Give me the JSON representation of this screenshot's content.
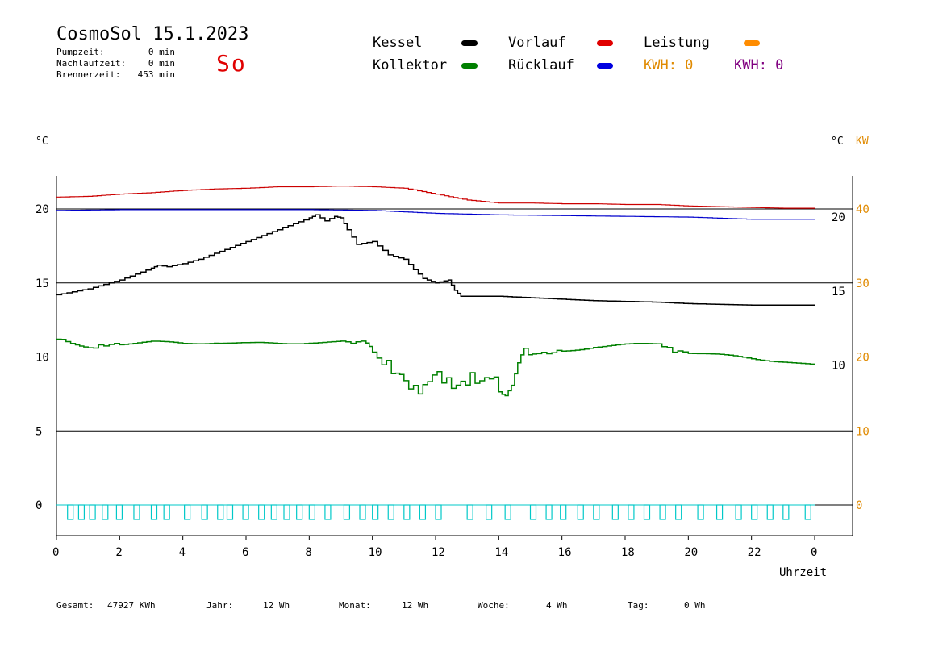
{
  "header": {
    "title": "CosmoSol 15.1.2023",
    "day": "So",
    "stats": [
      {
        "label": "Pumpzeit:",
        "value": "0 min"
      },
      {
        "label": "Nachlaufzeit:",
        "value": "0 min"
      },
      {
        "label": "Brennerzeit:",
        "value": "453 min"
      }
    ]
  },
  "legend": {
    "items": [
      {
        "label": "Kessel",
        "color": "#000000"
      },
      {
        "label": "Kollektor",
        "color": "#008000"
      },
      {
        "label": "Vorlauf",
        "color": "#e00000"
      },
      {
        "label": "Rücklauf",
        "color": "#0000e0"
      },
      {
        "label": "Leistung",
        "color": "#ff8c00"
      }
    ],
    "kwh_orange": "KWH: 0",
    "kwh_purple": "KWH: 0",
    "kwh_orange_color": "#e08a00",
    "kwh_purple_color": "#800080"
  },
  "axes": {
    "left_unit": "°C",
    "right_unit": "°C",
    "right_unit2": "KW",
    "xlabel": "Uhrzeit"
  },
  "footer": {
    "items": [
      {
        "label": "Gesamt:",
        "value": "47927 KWh"
      },
      {
        "label": "Jahr:",
        "value": "12 Wh"
      },
      {
        "label": "Monat:",
        "value": "12 Wh"
      },
      {
        "label": "Woche:",
        "value": "4 Wh"
      },
      {
        "label": "Tag:",
        "value": "0 Wh"
      }
    ]
  },
  "chart_data": {
    "type": "line",
    "xlabel": "Uhrzeit",
    "ylabel": "°C",
    "x_ticks": [
      "0",
      "2",
      "4",
      "6",
      "8",
      "10",
      "12",
      "14",
      "16",
      "18",
      "20",
      "22",
      "0"
    ],
    "xlim": [
      0,
      24
    ],
    "y_left_ticks": [
      0,
      5,
      10,
      15,
      20
    ],
    "y_right_ticks": [
      10,
      15,
      20
    ],
    "y_right2_ticks": [
      0,
      10,
      20,
      30,
      40
    ],
    "ylim": [
      -2,
      23
    ],
    "grid": true,
    "series": [
      {
        "name": "Vorlauf",
        "color": "#cc0000",
        "x": [
          0,
          1,
          2,
          3,
          4,
          5,
          6,
          7,
          8,
          9,
          10,
          11,
          12,
          13,
          14,
          15,
          16,
          17,
          18,
          19,
          20,
          21,
          22,
          23,
          24
        ],
        "y": [
          20.8,
          20.85,
          21,
          21.1,
          21.25,
          21.35,
          21.4,
          21.5,
          21.5,
          21.55,
          21.5,
          21.4,
          21.0,
          20.6,
          20.4,
          20.4,
          20.35,
          20.35,
          20.3,
          20.3,
          20.2,
          20.15,
          20.1,
          20.05,
          20.05
        ]
      },
      {
        "name": "Rücklauf",
        "color": "#0000cc",
        "x": [
          0,
          2,
          4,
          6,
          8,
          10,
          11,
          12,
          13,
          14,
          16,
          18,
          20,
          22,
          24
        ],
        "y": [
          19.9,
          19.95,
          19.95,
          19.95,
          19.95,
          19.9,
          19.8,
          19.7,
          19.65,
          19.6,
          19.55,
          19.5,
          19.45,
          19.3,
          19.3
        ]
      },
      {
        "name": "Kessel",
        "color": "#000000",
        "x": [
          0,
          0.5,
          1,
          1.5,
          2,
          2.5,
          3,
          3.2,
          3.5,
          4,
          4.5,
          5,
          5.5,
          6,
          6.5,
          7,
          7.5,
          8,
          8.2,
          8.5,
          8.8,
          9,
          9.2,
          9.5,
          10,
          10.5,
          11,
          11.3,
          11.6,
          12,
          12.4,
          12.6,
          12.8,
          13,
          14,
          15,
          16,
          17,
          18,
          19,
          20,
          21,
          22,
          23,
          24
        ],
        "y": [
          14.2,
          14.4,
          14.6,
          14.9,
          15.2,
          15.6,
          16.0,
          16.2,
          16.1,
          16.3,
          16.6,
          17.0,
          17.4,
          17.8,
          18.2,
          18.6,
          19.0,
          19.4,
          19.6,
          19.2,
          19.5,
          19.4,
          18.6,
          17.6,
          17.8,
          16.9,
          16.6,
          15.9,
          15.3,
          15.0,
          15.2,
          14.5,
          14.1,
          14.1,
          14.1,
          14.0,
          13.9,
          13.8,
          13.75,
          13.7,
          13.6,
          13.55,
          13.5,
          13.5,
          13.5
        ]
      },
      {
        "name": "Kollektor",
        "color": "#008000",
        "x": [
          0,
          0.3,
          0.6,
          1,
          1.5,
          2,
          3,
          4,
          5,
          6,
          7,
          8,
          9,
          9.8,
          10,
          10.3,
          10.6,
          11,
          11.3,
          11.6,
          11.9,
          12.2,
          12.5,
          12.8,
          13.1,
          13.4,
          13.7,
          14,
          14.2,
          14.4,
          14.6,
          14.8,
          15.2,
          16,
          17,
          18,
          19,
          19.5,
          20,
          21,
          22,
          23,
          24
        ],
        "y": [
          11.2,
          11.0,
          10.9,
          10.6,
          10.8,
          10.9,
          11.0,
          10.9,
          11.0,
          10.9,
          10.9,
          11.0,
          11.0,
          11.0,
          10.2,
          9.4,
          9.0,
          8.6,
          8.0,
          7.8,
          8.6,
          8.5,
          8.3,
          8.4,
          8.5,
          8.0,
          8.7,
          8.2,
          7.8,
          8.1,
          9.2,
          10.0,
          10.2,
          10.4,
          10.7,
          10.8,
          10.9,
          10.4,
          10.3,
          10.1,
          9.9,
          9.7,
          9.4
        ]
      }
    ],
    "pump_blocks_hours": [
      0.35,
      0.7,
      1.05,
      1.45,
      1.9,
      2.45,
      3.0,
      3.4,
      4.05,
      4.6,
      5.1,
      5.4,
      5.9,
      6.4,
      6.8,
      7.2,
      7.6,
      8.0,
      8.5,
      9.1,
      9.6,
      10.0,
      10.5,
      11.0,
      11.5,
      12.0,
      13.0,
      13.6,
      14.2,
      15.0,
      15.5,
      15.95,
      16.5,
      17.0,
      17.6,
      18.1,
      18.6,
      19.1,
      19.6,
      20.3,
      20.9,
      21.5,
      22.0,
      22.5,
      23.0,
      23.7
    ]
  }
}
